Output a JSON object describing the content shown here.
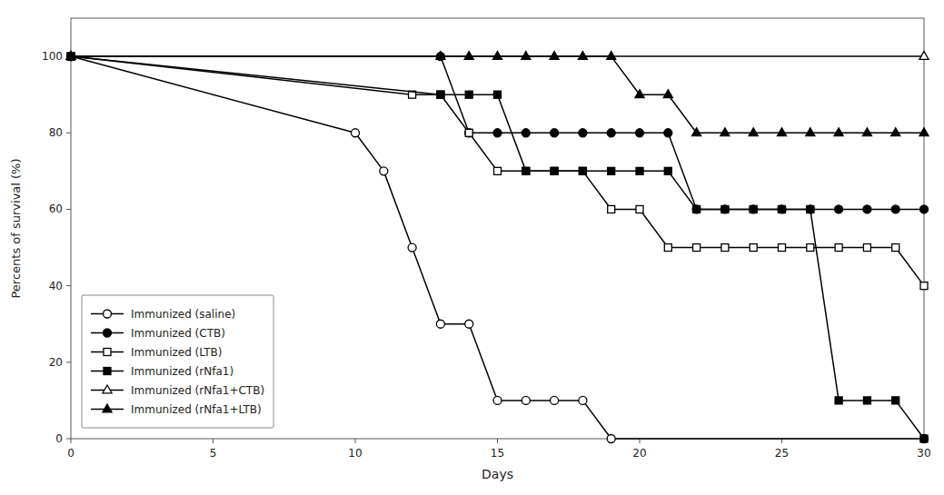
{
  "chart_data": {
    "type": "line",
    "x_label": "Days",
    "y_label": "Percents of survival (%)",
    "xlim": [
      0,
      30
    ],
    "ylim": [
      0,
      110
    ],
    "xticks": [
      0,
      5,
      10,
      15,
      20,
      25,
      30
    ],
    "yticks": [
      0,
      20,
      40,
      60,
      80,
      100
    ],
    "grid": false,
    "legend": "lower-left",
    "series": [
      {
        "name": "Immunized (saline)",
        "color": "black",
        "marker": "circle-open",
        "x": [
          0,
          10,
          11,
          12,
          13,
          14,
          15,
          16,
          17,
          18,
          19,
          30
        ],
        "values": [
          100,
          80,
          70,
          50,
          30,
          30,
          10,
          10,
          10,
          10,
          0,
          0
        ]
      },
      {
        "name": "Immunized (CTB)",
        "color": "black",
        "marker": "circle-filled",
        "x": [
          0,
          13,
          14,
          15,
          16,
          17,
          18,
          19,
          20,
          21,
          22,
          23,
          24,
          25,
          26,
          27,
          28,
          29,
          30
        ],
        "values": [
          100,
          100,
          80,
          80,
          80,
          80,
          80,
          80,
          80,
          80,
          60,
          60,
          60,
          60,
          60,
          60,
          60,
          60,
          60
        ]
      },
      {
        "name": "Immunized (LTB)",
        "color": "black",
        "marker": "square-open",
        "x": [
          0,
          12,
          13,
          14,
          15,
          16,
          17,
          18,
          19,
          20,
          21,
          22,
          23,
          24,
          25,
          26,
          27,
          28,
          29,
          30
        ],
        "values": [
          100,
          90,
          90,
          80,
          70,
          70,
          70,
          70,
          60,
          60,
          50,
          50,
          50,
          50,
          50,
          50,
          50,
          50,
          50,
          40
        ]
      },
      {
        "name": "Immunized (rNfa1)",
        "color": "black",
        "marker": "square-filled",
        "x": [
          0,
          13,
          14,
          15,
          16,
          17,
          18,
          19,
          20,
          21,
          22,
          23,
          24,
          25,
          26,
          27,
          28,
          29,
          30
        ],
        "values": [
          100,
          90,
          90,
          90,
          70,
          70,
          70,
          70,
          70,
          70,
          60,
          60,
          60,
          60,
          60,
          10,
          10,
          10,
          0
        ]
      },
      {
        "name": "Immunized (rNfa1+CTB)",
        "color": "black",
        "marker": "triangle-open",
        "x": [
          0,
          30
        ],
        "values": [
          100,
          100
        ]
      },
      {
        "name": "Immunized (rNfa1+LTB)",
        "color": "black",
        "marker": "triangle-filled",
        "x": [
          0,
          13,
          14,
          15,
          16,
          17,
          18,
          19,
          20,
          21,
          22,
          23,
          24,
          25,
          26,
          27,
          28,
          29,
          30
        ],
        "values": [
          100,
          100,
          100,
          100,
          100,
          100,
          100,
          100,
          90,
          90,
          80,
          80,
          80,
          80,
          80,
          80,
          80,
          80,
          80
        ]
      }
    ]
  }
}
